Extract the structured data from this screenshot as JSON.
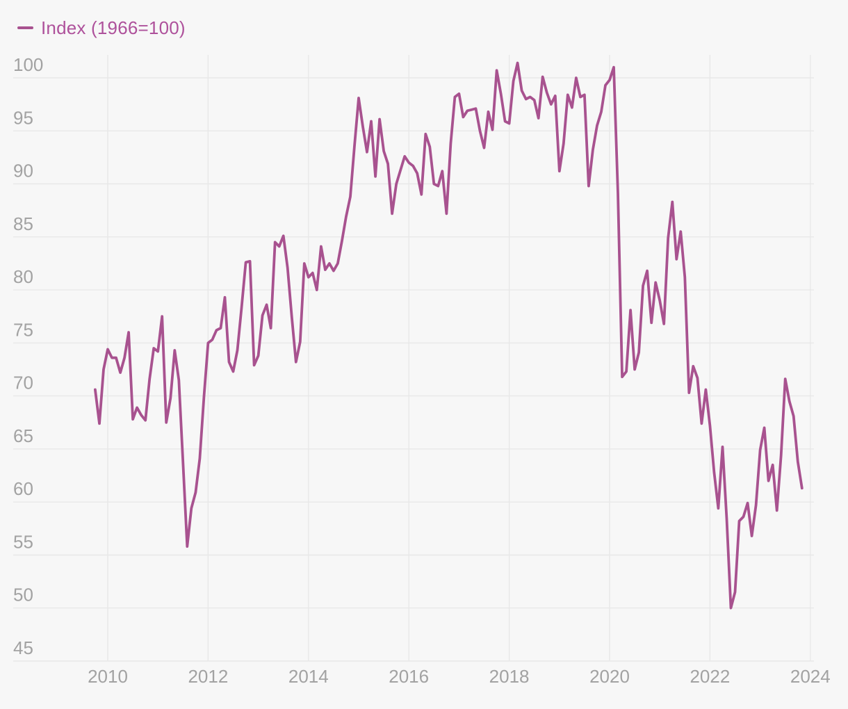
{
  "legend": {
    "label": "Index (1966=100)"
  },
  "colors": {
    "line": "#a8528f",
    "legend_text": "#ae519b",
    "grid": "#e8e8e8",
    "tick_label": "#a2a2a2",
    "background": "#f7f7f7"
  },
  "chart_data": {
    "type": "line",
    "title": "",
    "xlabel": "",
    "ylabel": "",
    "legend_position": "top-left",
    "grid": true,
    "x_axis": {
      "ticks": [
        2010,
        2012,
        2014,
        2016,
        2018,
        2020,
        2022,
        2024
      ],
      "tick_labels": [
        "2010",
        "2012",
        "2014",
        "2016",
        "2018",
        "2020",
        "2022",
        "2024"
      ]
    },
    "y_axis": {
      "ticks": [
        45,
        50,
        55,
        60,
        65,
        70,
        75,
        80,
        85,
        90,
        95,
        100
      ],
      "tick_labels": [
        "45",
        "50",
        "55",
        "60",
        "65",
        "70",
        "75",
        "80",
        "85",
        "90",
        "95",
        "100"
      ],
      "range": [
        45,
        100
      ]
    },
    "series": [
      {
        "name": "Index (1966=100)",
        "frequency": "monthly",
        "start_year": 2009,
        "start_month": 10,
        "end_year": 2023,
        "end_month": 11,
        "values": [
          70.6,
          67.4,
          72.5,
          74.4,
          73.6,
          73.6,
          72.2,
          73.6,
          76.0,
          67.8,
          68.9,
          68.2,
          67.7,
          71.6,
          74.5,
          74.2,
          77.5,
          67.5,
          69.8,
          74.3,
          71.5,
          63.7,
          55.8,
          59.4,
          60.9,
          64.1,
          69.9,
          75.0,
          75.3,
          76.2,
          76.4,
          79.3,
          73.2,
          72.3,
          74.3,
          78.3,
          82.6,
          82.7,
          72.9,
          73.8,
          77.6,
          78.6,
          76.4,
          84.5,
          84.1,
          85.1,
          82.1,
          77.5,
          73.2,
          75.1,
          82.5,
          81.2,
          81.6,
          80.0,
          84.1,
          81.9,
          82.5,
          81.8,
          82.5,
          84.6,
          86.9,
          88.8,
          93.6,
          98.1,
          95.4,
          93.0,
          95.9,
          90.7,
          96.1,
          93.1,
          91.9,
          87.2,
          90.0,
          91.3,
          92.6,
          92.0,
          91.7,
          91.0,
          89.0,
          94.7,
          93.5,
          90.0,
          89.8,
          91.2,
          87.2,
          93.8,
          98.2,
          98.5,
          96.3,
          96.9,
          97.0,
          97.1,
          95.0,
          93.4,
          96.8,
          95.1,
          100.7,
          98.5,
          95.9,
          95.7,
          99.7,
          101.4,
          98.8,
          98.0,
          98.2,
          97.9,
          96.2,
          100.1,
          98.6,
          97.5,
          98.3,
          91.2,
          93.8,
          98.4,
          97.2,
          100.0,
          98.2,
          98.4,
          89.8,
          93.2,
          95.5,
          96.8,
          99.3,
          99.8,
          101.0,
          89.1,
          71.8,
          72.3,
          78.1,
          72.5,
          74.1,
          80.4,
          81.8,
          76.9,
          80.7,
          79.0,
          76.8,
          84.9,
          88.3,
          82.9,
          85.5,
          81.2,
          70.3,
          72.8,
          71.7,
          67.4,
          70.6,
          67.2,
          62.8,
          59.4,
          65.2,
          58.4,
          50.0,
          51.5,
          58.2,
          58.6,
          59.9,
          56.8,
          59.7,
          64.9,
          67.0,
          62.0,
          63.5,
          59.2,
          64.4,
          71.6,
          69.5,
          68.1,
          63.8,
          61.3
        ]
      }
    ]
  }
}
